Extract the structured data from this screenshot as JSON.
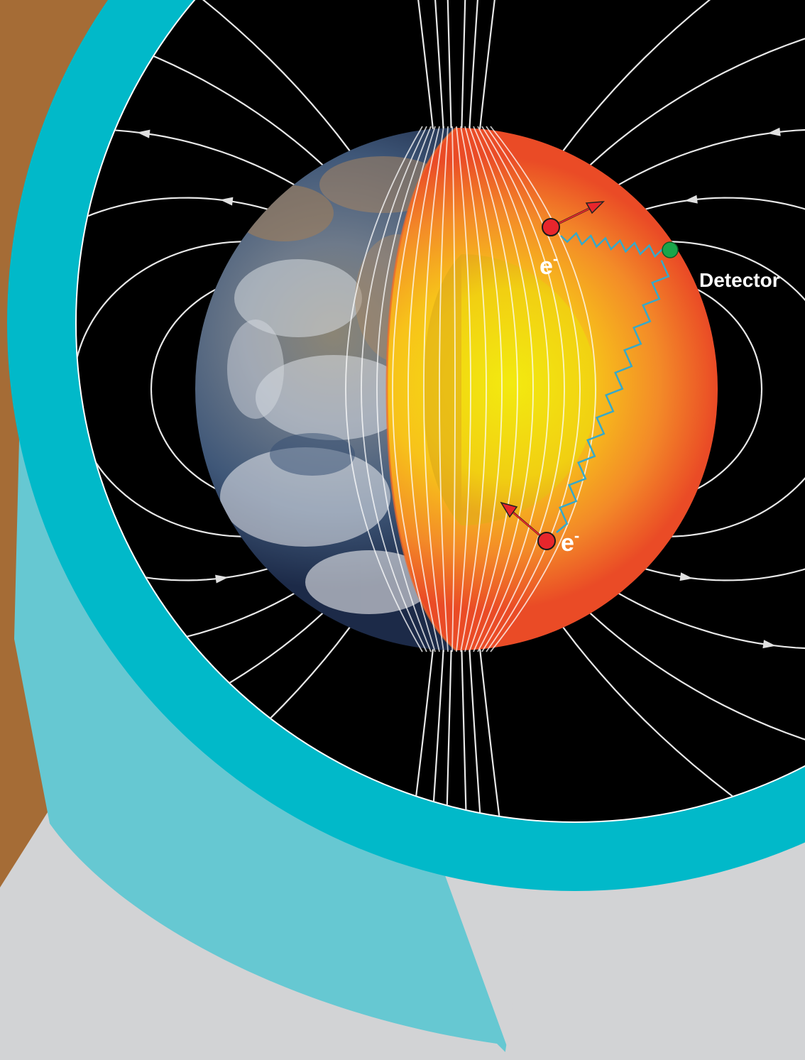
{
  "labels": {
    "electron": "e",
    "charge": "-",
    "detector": "Detector"
  },
  "colors": {
    "background": "#d2d3d5",
    "brown_panel": "#a56c36",
    "teal_ring": "#01b9c9",
    "light_teal_band": "#66c8d2",
    "space": "#000000",
    "field_line": "#ececec",
    "mantle": "#ea4b26",
    "core": "#f5e011",
    "electron": "#e8262c",
    "detector": "#1aa64a",
    "photon_wave": "#36a9c9"
  },
  "icons": {
    "electron_marker": "red-circle",
    "detector_marker": "green-circle",
    "spin_vector": "arrow",
    "photon": "wavy-line"
  }
}
